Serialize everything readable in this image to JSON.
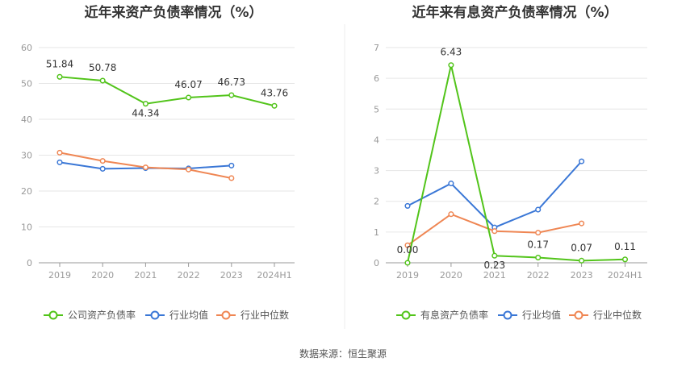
{
  "source_text": "数据来源：恒生聚源",
  "chart_data": [
    {
      "type": "line",
      "title": "近年来资产负债率情况（%）",
      "categories": [
        "2019",
        "2020",
        "2021",
        "2022",
        "2023",
        "2024H1"
      ],
      "ylim": [
        0,
        60
      ],
      "yticks": [
        0,
        10,
        20,
        30,
        40,
        50,
        60
      ],
      "grid": true,
      "legend_position": "bottom",
      "series": [
        {
          "name": "公司资产负债率",
          "color": "#52c41a",
          "values": [
            51.84,
            50.78,
            44.34,
            46.07,
            46.73,
            43.76
          ],
          "labels": [
            "51.84",
            "50.78",
            "44.34",
            "46.07",
            "46.73",
            "43.76"
          ]
        },
        {
          "name": "行业均值",
          "color": "#3a77d6",
          "values": [
            28.0,
            26.2,
            26.4,
            26.3,
            27.1,
            null
          ]
        },
        {
          "name": "行业中位数",
          "color": "#ef8653",
          "values": [
            30.7,
            28.4,
            26.6,
            26.0,
            23.6,
            null
          ]
        }
      ]
    },
    {
      "type": "line",
      "title": "近年来有息资产负债率情况（%）",
      "categories": [
        "2019",
        "2020",
        "2021",
        "2022",
        "2023",
        "2024H1"
      ],
      "ylim": [
        0,
        7
      ],
      "yticks": [
        0,
        1,
        2,
        3,
        4,
        5,
        6,
        7
      ],
      "grid": true,
      "legend_position": "bottom",
      "series": [
        {
          "name": "有息资产负债率",
          "color": "#52c41a",
          "values": [
            0.0,
            6.43,
            0.23,
            0.17,
            0.07,
            0.11
          ],
          "labels": [
            "0.00",
            "6.43",
            "0.23",
            "0.17",
            "0.07",
            "0.11"
          ]
        },
        {
          "name": "行业均值",
          "color": "#3a77d6",
          "values": [
            1.85,
            2.58,
            1.15,
            1.73,
            3.3,
            null
          ]
        },
        {
          "name": "行业中位数",
          "color": "#ef8653",
          "values": [
            0.57,
            1.58,
            1.03,
            0.98,
            1.28,
            null
          ]
        }
      ]
    }
  ]
}
